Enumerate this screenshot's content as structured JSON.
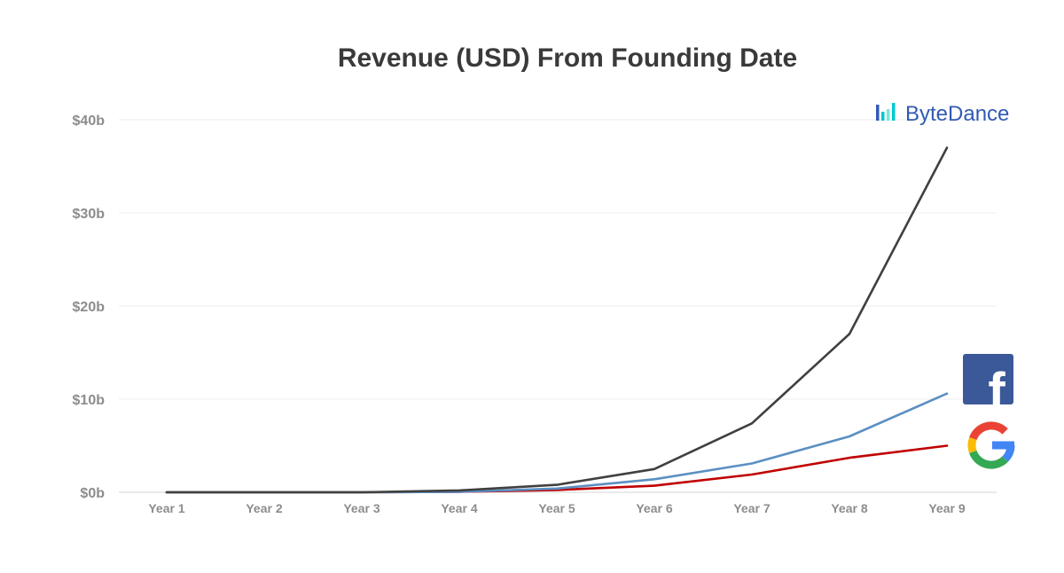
{
  "chart_data": {
    "type": "line",
    "title": "Revenue (USD) From Founding Date",
    "xlabel": "",
    "ylabel": "",
    "categories": [
      "Year 1",
      "Year 2",
      "Year 3",
      "Year 4",
      "Year 5",
      "Year 6",
      "Year 7",
      "Year 8",
      "Year 9"
    ],
    "ylim": [
      0,
      40
    ],
    "yticks": [
      {
        "value": 0,
        "label": "$0b"
      },
      {
        "value": 10,
        "label": "$10b"
      },
      {
        "value": 20,
        "label": "$20b"
      },
      {
        "value": 30,
        "label": "$30b"
      },
      {
        "value": 40,
        "label": "$40b"
      }
    ],
    "grid": true,
    "legend": "logos at line ends (right)",
    "series": [
      {
        "name": "ByteDance",
        "color": "#404040",
        "logo": "bytedance-logo",
        "values": [
          0,
          0,
          0,
          0.2,
          0.8,
          2.5,
          7.4,
          17.0,
          37.0
        ]
      },
      {
        "name": "Facebook",
        "color": "#5b8fc2",
        "logo": "facebook-logo",
        "values": [
          0,
          0,
          0,
          0.05,
          0.4,
          1.4,
          3.1,
          6.0,
          10.6
        ]
      },
      {
        "name": "Google",
        "color": "#c00000",
        "logo": "google-logo",
        "values": [
          0,
          0,
          0,
          0.05,
          0.25,
          0.7,
          1.9,
          3.7,
          5.0
        ]
      }
    ]
  },
  "logos": {
    "bytedance": {
      "text": "ByteDance",
      "colors": [
        "#325ab4",
        "#00c8d2",
        "#78e6dc"
      ]
    },
    "facebook": {
      "letter": "f",
      "color": "#3b5998"
    },
    "google": {
      "colors": [
        "#ea4335",
        "#fbbc05",
        "#34a853",
        "#4285f4"
      ]
    }
  }
}
